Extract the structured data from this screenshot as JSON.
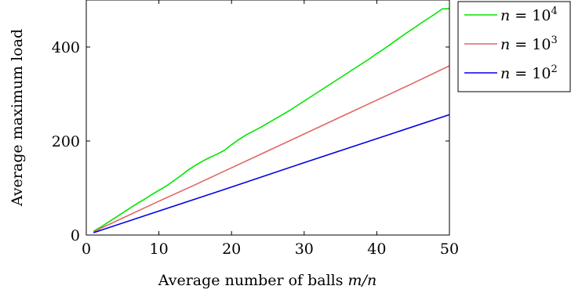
{
  "chart_data": {
    "type": "line",
    "title": "",
    "xlabel": "Average number of balls m/n",
    "xlabel_parts": {
      "text": "Average number of balls ",
      "math": "m/n"
    },
    "ylabel": "Average maximum load",
    "xlim": [
      0,
      50
    ],
    "ylim": [
      0,
      500
    ],
    "xticks": [
      0,
      10,
      20,
      30,
      40,
      50
    ],
    "yticks": [
      0,
      200,
      400
    ],
    "grid": false,
    "legend_position": "outside-top-right",
    "series": [
      {
        "name": "n = 10^4",
        "label_base": "10",
        "label_exp": "4",
        "color": "#00e600",
        "x": [
          1,
          2,
          3,
          4,
          5,
          6,
          7,
          8,
          9,
          10,
          11,
          12,
          13,
          14,
          15,
          16,
          17,
          18,
          19,
          20,
          21,
          22,
          23,
          24,
          25,
          26,
          27,
          28,
          29,
          30,
          31,
          32,
          33,
          34,
          35,
          36,
          37,
          38,
          39,
          40,
          41,
          42,
          43,
          44,
          45,
          46,
          47,
          48,
          49,
          50
        ],
        "y": [
          8,
          17,
          27,
          37,
          47,
          57,
          67,
          76,
          86,
          95,
          104,
          115,
          126,
          138,
          148,
          157,
          165,
          172,
          180,
          192,
          203,
          213,
          221,
          229,
          238,
          247,
          256,
          265,
          275,
          285,
          295,
          305,
          315,
          325,
          335,
          345,
          355,
          365,
          375,
          386,
          396,
          407,
          418,
          429,
          439,
          450,
          460,
          470,
          481,
          482
        ]
      },
      {
        "name": "n = 10^3",
        "label_base": "10",
        "label_exp": "3",
        "color": "#e06666",
        "x": [
          1,
          5,
          10,
          15,
          20,
          25,
          30,
          35,
          40,
          45,
          50
        ],
        "y": [
          7,
          36,
          72,
          107,
          143,
          179,
          215,
          251,
          287,
          323,
          360
        ]
      },
      {
        "name": "n = 10^2",
        "label_base": "10",
        "label_exp": "2",
        "color": "#0000e6",
        "x": [
          1,
          10,
          20,
          30,
          40,
          50
        ],
        "y": [
          5,
          51,
          102,
          154,
          205,
          256
        ]
      }
    ]
  }
}
